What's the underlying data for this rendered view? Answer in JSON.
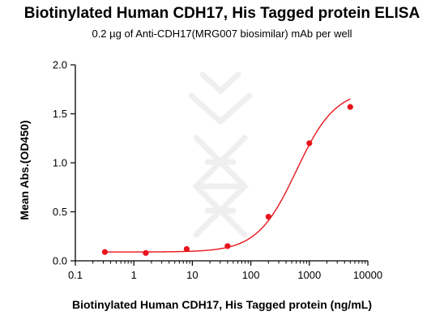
{
  "chart_data": {
    "type": "line",
    "title": "Biotinylated Human CDH17, His Tagged protein ELISA",
    "subtitle": "0.2 µg of Anti-CDH17(MRG007 biosimilar) mAb per well",
    "xlabel": "Biotinylated Human CDH17, His Tagged protein (ng/mL)",
    "ylabel": "Mean Abs.(OD450)",
    "x_scale": "log",
    "xlim": [
      0.1,
      10000
    ],
    "ylim": [
      0,
      2.0
    ],
    "x_ticks": [
      "0.1",
      "1",
      "10",
      "100",
      "1000",
      "10000"
    ],
    "y_ticks": [
      "0.0",
      "0.5",
      "1.0",
      "1.5",
      "2.0"
    ],
    "grid": false,
    "legend": "none",
    "series": [
      {
        "color": "#e8141c",
        "points": [
          {
            "x": 0.32,
            "y": 0.09
          },
          {
            "x": 1.6,
            "y": 0.08
          },
          {
            "x": 8,
            "y": 0.12
          },
          {
            "x": 40,
            "y": 0.15
          },
          {
            "x": 200,
            "y": 0.45
          },
          {
            "x": 1000,
            "y": 1.2
          },
          {
            "x": 5000,
            "y": 1.57
          }
        ],
        "fit": {
          "bottom": 0.09,
          "top": 1.75,
          "ec50": 600,
          "hill": 1.3
        }
      }
    ]
  }
}
